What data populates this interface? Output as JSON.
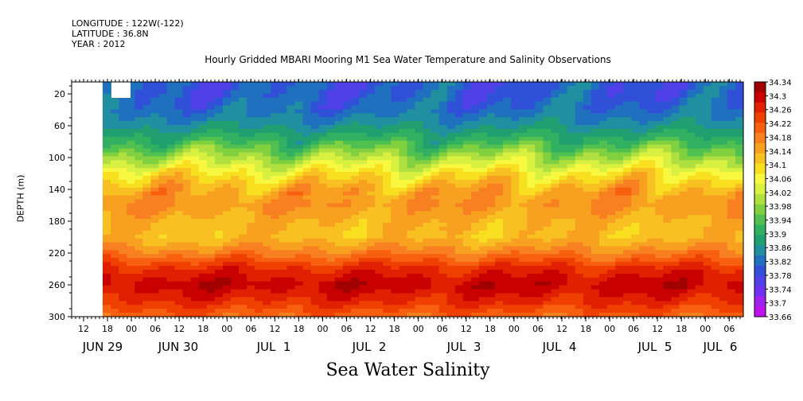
{
  "header": {
    "longitude": "LONGITUDE : 122W(-122)",
    "latitude": "LATITUDE : 36.8N",
    "year": "YEAR : 2012"
  },
  "chart_data": {
    "type": "heatmap",
    "title": "Hourly Gridded MBARI Mooring M1 Sea Water Temperature and Salinity Observations",
    "xlabel": "",
    "ylabel": "DEPTH (m)",
    "bottom_title": "Sea Water Salinity",
    "y_ticks": [
      20,
      60,
      100,
      140,
      180,
      220,
      260,
      300
    ],
    "ylim": [
      300,
      5
    ],
    "x_hour_ticks": [
      "12",
      "18",
      "00",
      "06",
      "12",
      "18",
      "00",
      "06",
      "12",
      "18",
      "00",
      "06",
      "12",
      "18",
      "00",
      "06",
      "12",
      "18",
      "00",
      "06",
      "12",
      "18",
      "00",
      "06",
      "12",
      "18",
      "00",
      "06"
    ],
    "x_dates": [
      "JUN 29",
      "JUN 30",
      "JUL  1",
      "JUL  2",
      "JUL  3",
      "JUL  4",
      "JUL  5",
      "JUL  6"
    ],
    "colorbar": {
      "min": 33.66,
      "max": 34.34,
      "labels": [
        "34.34",
        "34.3",
        "34.26",
        "34.22",
        "34.18",
        "34.14",
        "34.1",
        "34.06",
        "34.02",
        "33.98",
        "33.94",
        "33.9",
        "33.86",
        "33.82",
        "33.78",
        "33.74",
        "33.7",
        "33.66"
      ],
      "colors": [
        "#a00000",
        "#c80000",
        "#e02000",
        "#f04000",
        "#f86010",
        "#f88020",
        "#f8a020",
        "#f8c020",
        "#f8e020",
        "#f8f840",
        "#d8f040",
        "#b0e040",
        "#80d040",
        "#50c050",
        "#30b060",
        "#20a070",
        "#2090a0",
        "#2070c0",
        "#3050d8",
        "#5040e8",
        "#7030f0",
        "#a020f0",
        "#c010f0"
      ]
    },
    "profile": [
      {
        "depth": 20,
        "value": 33.8
      },
      {
        "depth": 40,
        "value": 33.82
      },
      {
        "depth": 60,
        "value": 33.86
      },
      {
        "depth": 80,
        "value": 33.92
      },
      {
        "depth": 100,
        "value": 34.0
      },
      {
        "depth": 120,
        "value": 34.08
      },
      {
        "depth": 140,
        "value": 34.14
      },
      {
        "depth": 160,
        "value": 34.16
      },
      {
        "depth": 180,
        "value": 34.13
      },
      {
        "depth": 200,
        "value": 34.12
      },
      {
        "depth": 220,
        "value": 34.18
      },
      {
        "depth": 240,
        "value": 34.26
      },
      {
        "depth": 260,
        "value": 34.3
      },
      {
        "depth": 280,
        "value": 34.26
      },
      {
        "depth": 300,
        "value": 34.2
      }
    ]
  }
}
